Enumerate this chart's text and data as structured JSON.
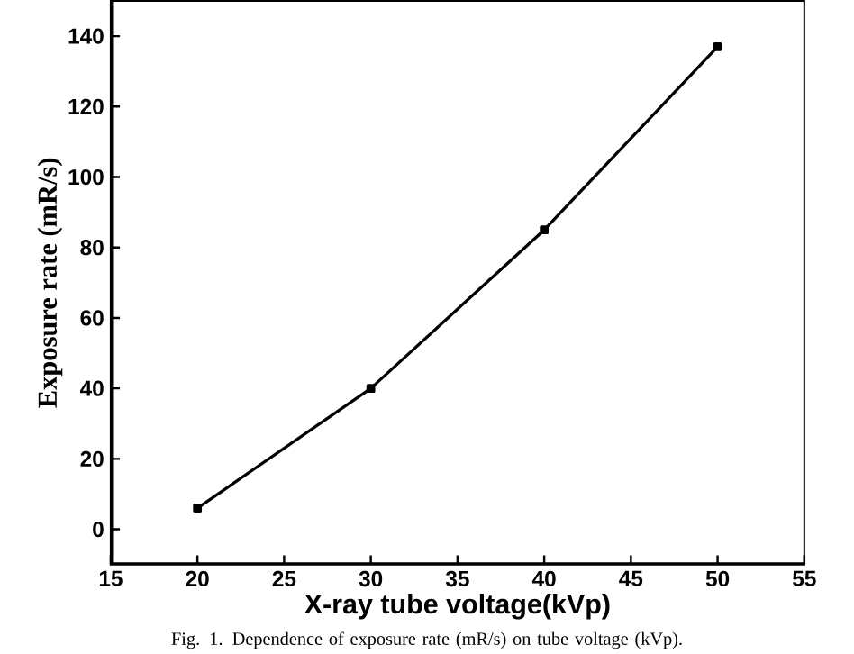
{
  "chart_data": {
    "type": "line",
    "xlabel": "X-ray tube voltage(kVp)",
    "ylabel": "Exposure rate (mR/s)",
    "x": [
      20,
      30,
      40,
      50
    ],
    "series": [
      {
        "color": "#000000",
        "values": [
          6,
          40,
          85,
          137
        ]
      }
    ],
    "xlim": [
      15,
      55
    ],
    "ylim": [
      -10,
      150
    ],
    "xticks": [
      15,
      20,
      25,
      30,
      35,
      40,
      45,
      50,
      55
    ],
    "yticks": [
      0,
      20,
      40,
      60,
      80,
      100,
      120,
      140
    ],
    "marker": "square",
    "line_style": "solid",
    "annotations": [
      "Fig. 1. Dependence of exposure rate (mR/s) on tube voltage (kVp)."
    ]
  }
}
